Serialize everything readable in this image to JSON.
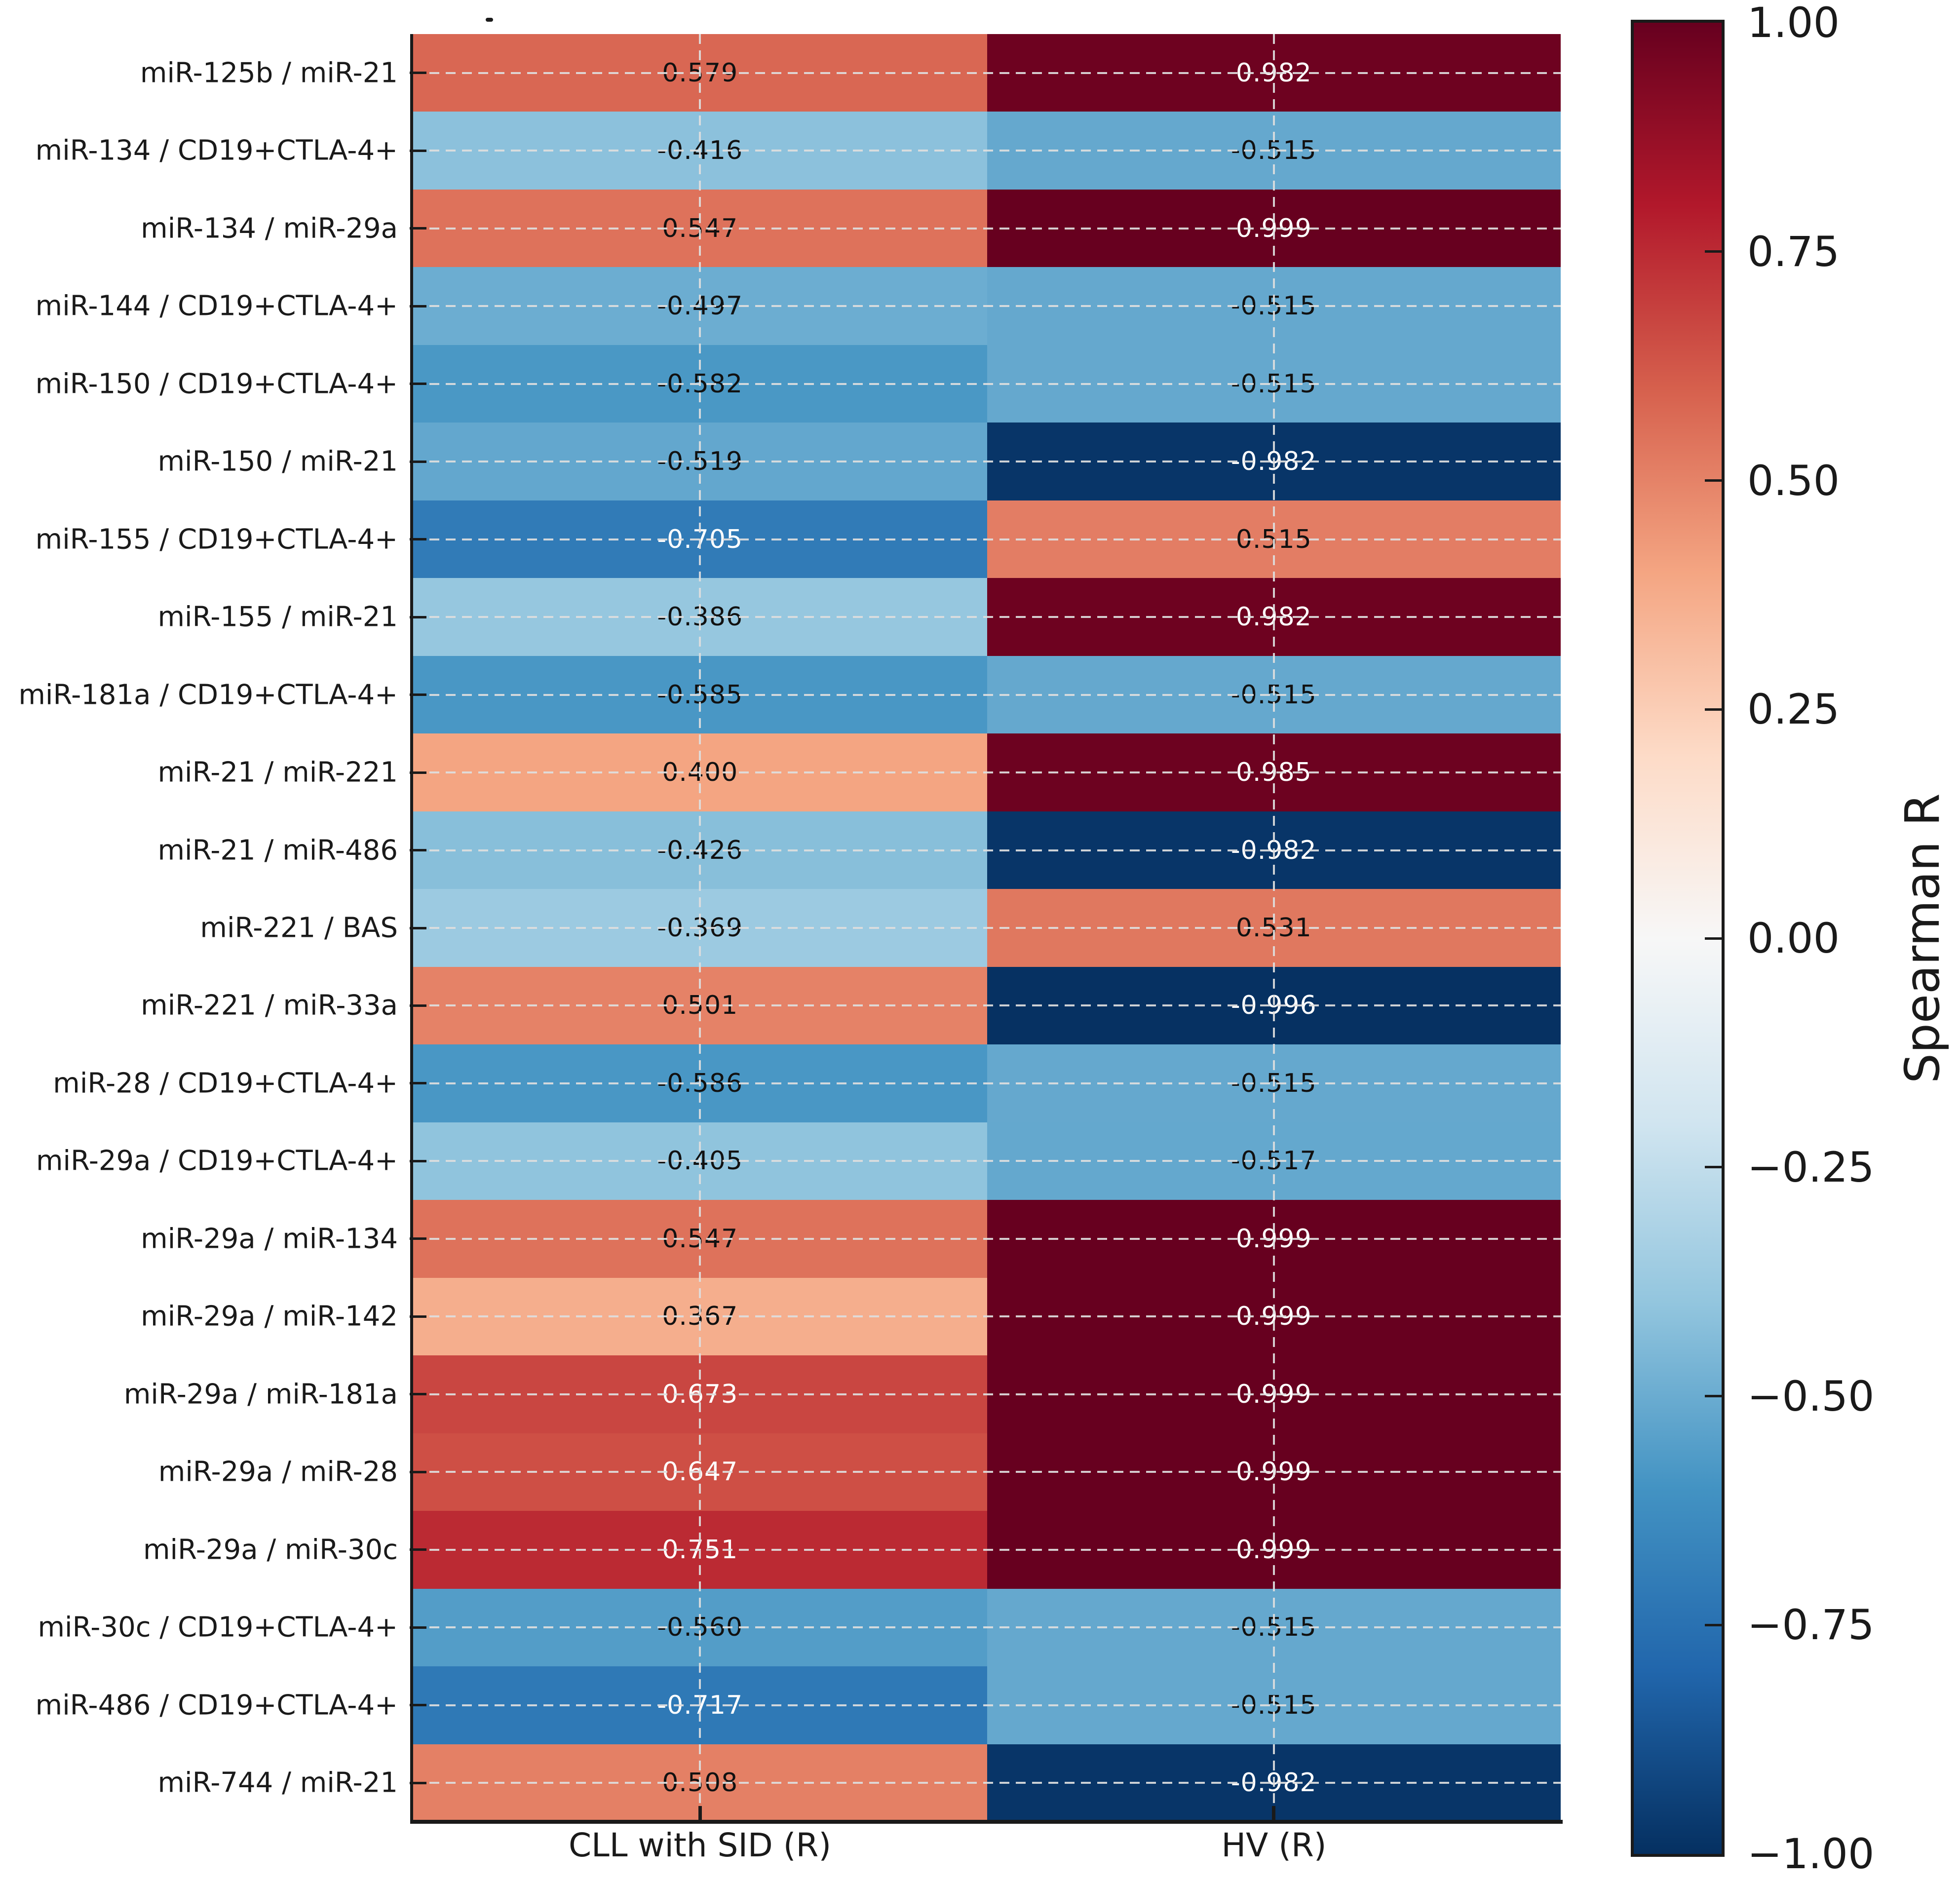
{
  "chart_data": {
    "type": "heatmap",
    "title": "",
    "x_categories": [
      "CLL with SID (R)",
      "HV (R)"
    ],
    "y_categories": [
      "miR-125b / miR-21",
      "miR-134 / CD19+CTLA-4+",
      "miR-134 / miR-29a",
      "miR-144 / CD19+CTLA-4+",
      "miR-150 / CD19+CTLA-4+",
      "miR-150 / miR-21",
      "miR-155 / CD19+CTLA-4+",
      "miR-155 / miR-21",
      "miR-181a / CD19+CTLA-4+",
      "miR-21 / miR-221",
      "miR-21 / miR-486",
      "miR-221 / BAS",
      "miR-221 / miR-33a",
      "miR-28 / CD19+CTLA-4+",
      "miR-29a / CD19+CTLA-4+",
      "miR-29a / miR-134",
      "miR-29a / miR-142",
      "miR-29a / miR-181a",
      "miR-29a / miR-28",
      "miR-29a / miR-30c",
      "miR-30c / CD19+CTLA-4+",
      "miR-486 / CD19+CTLA-4+",
      "miR-744 / miR-21"
    ],
    "series": [
      {
        "name": "CLL with SID (R)",
        "values": [
          0.579,
          -0.416,
          0.547,
          -0.497,
          -0.582,
          -0.519,
          -0.705,
          -0.386,
          -0.585,
          0.4,
          -0.426,
          -0.369,
          0.501,
          -0.586,
          -0.405,
          0.547,
          0.367,
          0.673,
          0.647,
          0.751,
          -0.56,
          -0.717,
          0.508
        ]
      },
      {
        "name": "HV (R)",
        "values": [
          0.982,
          -0.515,
          0.999,
          -0.515,
          -0.515,
          -0.982,
          0.515,
          0.982,
          -0.515,
          0.985,
          -0.982,
          0.531,
          -0.996,
          -0.515,
          -0.517,
          0.999,
          0.999,
          0.999,
          0.999,
          0.999,
          -0.515,
          -0.515,
          -0.982
        ]
      }
    ],
    "value_range": [
      -1,
      1
    ],
    "value_format_decimals": 3,
    "colormap": "RdBu_r",
    "colormap_anchors": [
      "#67001f",
      "#b2182b",
      "#d6604d",
      "#f4a582",
      "#fddbc7",
      "#f7f7f7",
      "#d1e5f0",
      "#92c5de",
      "#4393c3",
      "#2166ac",
      "#053061"
    ],
    "grid": "dashed",
    "legend_position": "right-colorbar",
    "colorbar": {
      "label": "Spearman R",
      "ticks": [
        "1.00",
        "0.75",
        "0.50",
        "0.25",
        "0.00",
        "−0.25",
        "−0.50",
        "−0.75",
        "−1.00"
      ],
      "tick_values": [
        1.0,
        0.75,
        0.5,
        0.25,
        0.0,
        -0.25,
        -0.5,
        -0.75,
        -1.0
      ]
    },
    "annotation_text_colors": {
      "light": "#ffffff",
      "dark": "#111111"
    },
    "stray_title_text": "."
  }
}
